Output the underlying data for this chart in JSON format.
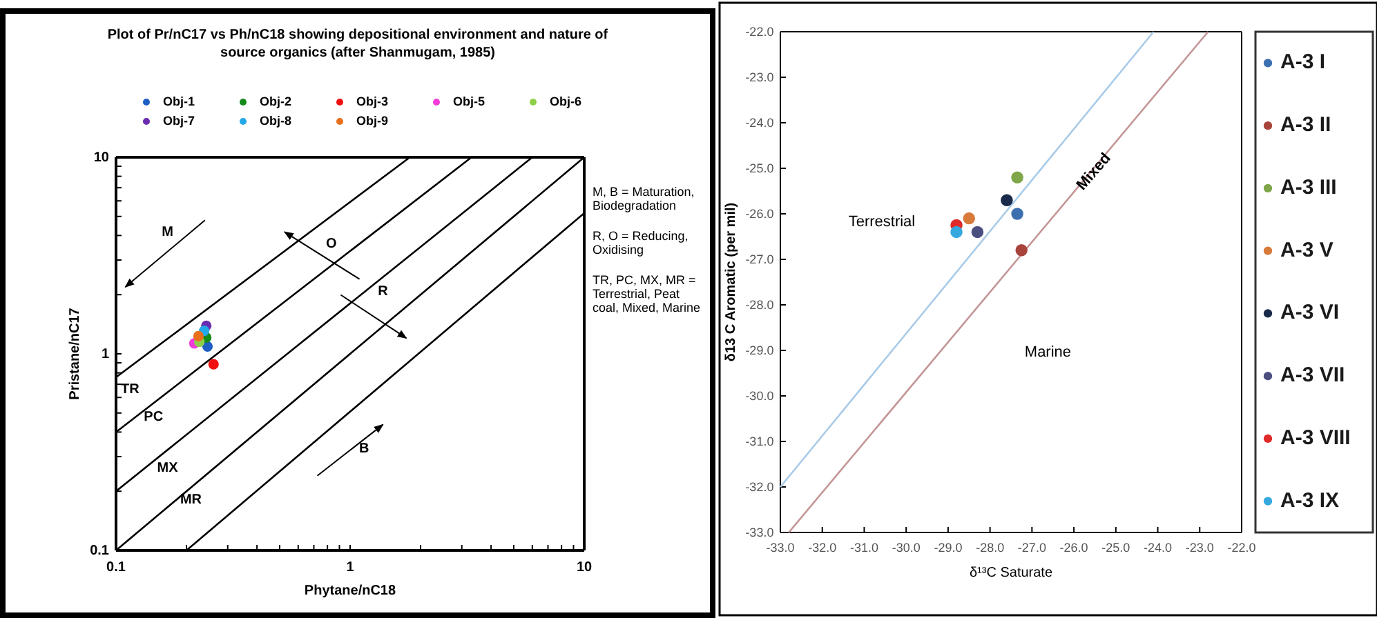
{
  "chart_data": [
    {
      "type": "scatter",
      "title": "Plot of Pr/nC17 vs Ph/nC18 showing depositional environment and nature of source organics (after Shanmugam, 1985)",
      "xlabel": "Phytane/nC18",
      "ylabel": "Pristane/nC17",
      "log": "xy",
      "marker": "circle",
      "legend": "top",
      "grid": false,
      "xlim": [
        0.1,
        10
      ],
      "ylim": [
        0.1,
        10
      ],
      "xticks": [
        0.1,
        {
          "value": 0.2,
          "label": null
        },
        {
          "value": 0.3,
          "label": null
        },
        {
          "value": 0.4,
          "label": null
        },
        {
          "value": 0.5,
          "label": null
        },
        {
          "value": 0.6,
          "label": null
        },
        {
          "value": 0.7,
          "label": null
        },
        {
          "value": 0.8,
          "label": null
        },
        {
          "value": 0.9,
          "label": null
        },
        1,
        {
          "value": 2,
          "label": null
        },
        {
          "value": 3,
          "label": null
        },
        {
          "value": 4,
          "label": null
        },
        {
          "value": 5,
          "label": null
        },
        {
          "value": 6,
          "label": null
        },
        {
          "value": 7,
          "label": null
        },
        {
          "value": 8,
          "label": null
        },
        {
          "value": 9,
          "label": null
        },
        10
      ],
      "yticks": [
        0.1,
        {
          "value": 0.2,
          "label": null
        },
        {
          "value": 0.3,
          "label": null
        },
        {
          "value": 0.4,
          "label": null
        },
        {
          "value": 0.5,
          "label": null
        },
        {
          "value": 0.6,
          "label": null
        },
        {
          "value": 0.7,
          "label": null
        },
        {
          "value": 0.8,
          "label": null
        },
        {
          "value": 0.9,
          "label": null
        },
        1,
        {
          "value": 2,
          "label": null
        },
        {
          "value": 3,
          "label": null
        },
        {
          "value": 4,
          "label": null
        },
        {
          "value": 5,
          "label": null
        },
        {
          "value": 6,
          "label": null
        },
        {
          "value": 7,
          "label": null
        },
        {
          "value": 8,
          "label": null
        },
        {
          "value": 9,
          "label": null
        },
        10
      ],
      "series": [
        {
          "type": "line",
          "marker": "none",
          "color": "#000000",
          "x": [
            0.1,
            1.8
          ],
          "values": [
            0.76,
            10
          ]
        },
        {
          "type": "line",
          "marker": "none",
          "color": "#000000",
          "x": [
            0.1,
            3.3
          ],
          "values": [
            0.4,
            10
          ]
        },
        {
          "type": "line",
          "marker": "none",
          "color": "#000000",
          "x": [
            0.1,
            6
          ],
          "values": [
            0.2,
            10
          ]
        },
        {
          "type": "line",
          "marker": "none",
          "color": "#000000",
          "x": [
            0.1,
            10
          ],
          "values": [
            0.1,
            10
          ]
        },
        {
          "type": "line",
          "marker": "none",
          "color": "#000000",
          "x": [
            0.2,
            10
          ],
          "values": [
            0.1,
            5.2
          ]
        },
        {
          "name": "Obj-1",
          "color": "#1f5fc4",
          "x": [
            0.246
          ],
          "values": [
            1.09
          ]
        },
        {
          "name": "Obj-2",
          "color": "#138a1a",
          "x": [
            0.243
          ],
          "values": [
            1.21
          ]
        },
        {
          "name": "Obj-3",
          "color": "#f01010",
          "x": [
            0.261
          ],
          "values": [
            0.885
          ]
        },
        {
          "name": "Obj-5",
          "color": "#f03cd8",
          "x": [
            0.216
          ],
          "values": [
            1.13
          ]
        },
        {
          "name": "Obj-6",
          "color": "#8ed04a",
          "x": [
            0.227
          ],
          "values": [
            1.15
          ]
        },
        {
          "name": "Obj-7",
          "color": "#6a2db0",
          "x": [
            0.243
          ],
          "values": [
            1.39
          ]
        },
        {
          "name": "Obj-8",
          "color": "#25a8e8",
          "x": [
            0.238
          ],
          "values": [
            1.31
          ]
        },
        {
          "name": "Obj-9",
          "color": "#e8701c",
          "x": [
            0.225
          ],
          "values": [
            1.23
          ]
        }
      ],
      "annotations": [
        "M",
        "O",
        "R",
        "B",
        "TR",
        "PC",
        "MX",
        "MR",
        "M, B = Maturation, Biodegradation",
        "R, O = Reducing, Oxidising",
        "TR, PC, MX, MR = Terrestrial, Peat coal, Mixed, Marine"
      ]
    },
    {
      "type": "scatter",
      "xlabel": "δ¹³C Saturate",
      "ylabel": "δ13 C Aromatic (per mil)",
      "marker": "circle",
      "legend": "right",
      "grid": false,
      "xlim": [
        -33,
        -22
      ],
      "ylim": [
        -33,
        -22
      ],
      "xticks": [
        {
          "value": -33,
          "label": "-33.0"
        },
        {
          "value": -32,
          "label": "-32.0"
        },
        {
          "value": -31,
          "label": "-31.0"
        },
        {
          "value": -30,
          "label": "-30.0"
        },
        {
          "value": -29,
          "label": "-29.0"
        },
        {
          "value": -28,
          "label": "-28.0"
        },
        {
          "value": -27,
          "label": "-27.0"
        },
        {
          "value": -26,
          "label": "-26.0"
        },
        {
          "value": -25,
          "label": "-25.0"
        },
        {
          "value": -24,
          "label": "-24.0"
        },
        {
          "value": -23,
          "label": "-23.0"
        },
        {
          "value": -22,
          "label": "-22.0"
        }
      ],
      "yticks": [
        {
          "value": -33,
          "label": "-33.0"
        },
        {
          "value": -32,
          "label": "-32.0"
        },
        {
          "value": -31,
          "label": "-31.0"
        },
        {
          "value": -30,
          "label": "-30.0"
        },
        {
          "value": -29,
          "label": "-29.0"
        },
        {
          "value": -28,
          "label": "-28.0"
        },
        {
          "value": -27,
          "label": "-27.0"
        },
        {
          "value": -26,
          "label": "-26.0"
        },
        {
          "value": -25,
          "label": "-25.0"
        },
        {
          "value": -24,
          "label": "-24.0"
        },
        {
          "value": -23,
          "label": "-23.0"
        },
        {
          "value": -22,
          "label": "-22.0"
        }
      ],
      "series": [
        {
          "type": "line",
          "marker": "none",
          "color": "#a9cbe8",
          "x": [
            -33,
            -24.1
          ],
          "values": [
            -32,
            -22
          ]
        },
        {
          "type": "line",
          "marker": "none",
          "color": "#c39597",
          "x": [
            -32.8,
            -22.8
          ],
          "values": [
            -33,
            -22
          ]
        },
        {
          "name": "A-3 I",
          "color": "#3c6fb0",
          "x": [
            -27.35
          ],
          "values": [
            -26.0
          ]
        },
        {
          "name": "A-3 II",
          "color": "#a8443c",
          "x": [
            -27.25
          ],
          "values": [
            -26.8
          ]
        },
        {
          "name": "A-3 III",
          "color": "#7fa648",
          "x": [
            -27.35
          ],
          "values": [
            -25.2
          ]
        },
        {
          "name": "A-3 V",
          "color": "#d87a3a",
          "x": [
            -28.5
          ],
          "values": [
            -26.1
          ]
        },
        {
          "name": "A-3 VI",
          "color": "#1a2a4a",
          "x": [
            -27.6
          ],
          "values": [
            -25.7
          ]
        },
        {
          "name": "A-3 VII",
          "color": "#4a4f80",
          "x": [
            -28.3
          ],
          "values": [
            -26.4
          ]
        },
        {
          "name": "A-3 VIII",
          "color": "#e02a2a",
          "x": [
            -28.8
          ],
          "values": [
            -26.25
          ]
        },
        {
          "name": "A-3 IX",
          "color": "#36a8e0",
          "x": [
            -28.8
          ],
          "values": [
            -26.4
          ]
        }
      ],
      "annotations": [
        "Terrestrial",
        "Mixed",
        "Marine"
      ]
    }
  ]
}
